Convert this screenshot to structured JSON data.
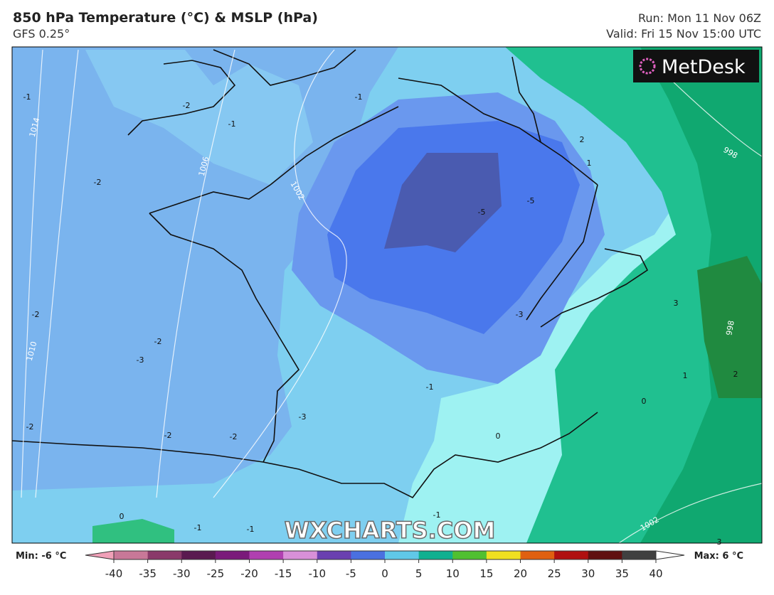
{
  "header": {
    "title": "850 hPa Temperature (°C) & MSLP (hPa)",
    "model": "GFS 0.25°",
    "run": "Run: Mon 11 Nov 06Z",
    "valid": "Valid: Fri 15 Nov 15:00 UTC"
  },
  "logo": "MetDesk",
  "watermark": "WXCHARTS.COM",
  "map": {
    "temperature_labels": [
      -1,
      -2,
      -1,
      -2,
      -2,
      -2,
      -3,
      -2,
      -2,
      -2,
      -3,
      -5,
      -5,
      -3,
      -1,
      -1,
      0,
      2,
      1,
      3,
      2,
      1,
      -1,
      -1,
      -1,
      0,
      0,
      3
    ],
    "isobar_labels": [
      1014,
      1010,
      1006,
      1002,
      998,
      998,
      1002
    ]
  },
  "colorbar": {
    "min_label": "Min: -6 °C",
    "max_label": "Max: 6 °C",
    "range": [
      -40,
      40
    ],
    "ticks": [
      -40,
      -35,
      -30,
      -25,
      -20,
      -15,
      -10,
      -5,
      0,
      5,
      10,
      15,
      20,
      25,
      30,
      35,
      40
    ],
    "colors": [
      "#f0a0b8",
      "#c87898",
      "#8a3a6a",
      "#5a1a50",
      "#7a1a7a",
      "#b040b0",
      "#d890d8",
      "#6a40b0",
      "#4a70e0",
      "#60c8e8",
      "#10b090",
      "#50c030",
      "#f0e020",
      "#e06010",
      "#b01010",
      "#601010",
      "#404040",
      "#a0a0a0"
    ]
  }
}
